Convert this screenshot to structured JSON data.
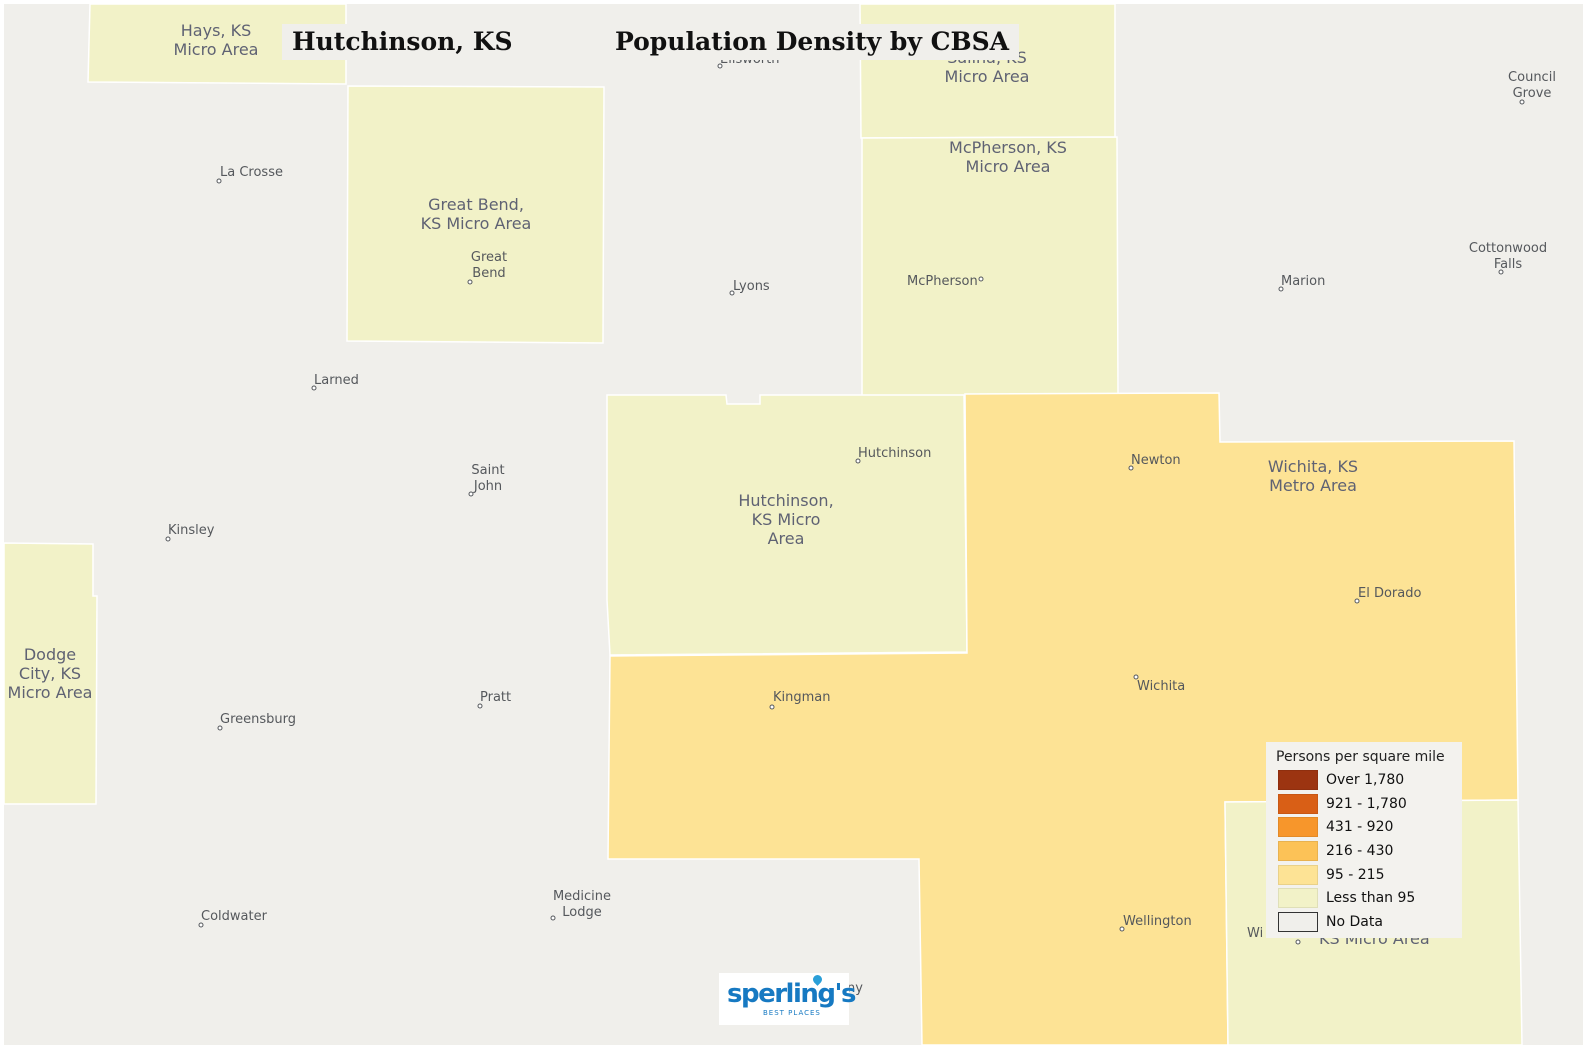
{
  "map": {
    "title_location": "Hutchinson, KS",
    "title_subject": "Population Density by CBSA",
    "colors": {
      "background": "#f0efeb",
      "less_than_95": "#f2f2c8",
      "band_95_215": "#fde395",
      "border": "#ffffff"
    },
    "areas": [
      {
        "id": "hays",
        "name": "Hays, KS Micro Area",
        "lines": [
          "Hays, KS",
          "Micro Area"
        ],
        "density_class": "Less than 95"
      },
      {
        "id": "great-bend",
        "name": "Great Bend, KS Micro Area",
        "lines": [
          "Great Bend,",
          "KS Micro Area"
        ],
        "density_class": "Less than 95"
      },
      {
        "id": "salina",
        "name": "Salina, KS Micro Area",
        "lines": [
          "Salina, KS",
          "Micro Area"
        ],
        "density_class": "Less than 95"
      },
      {
        "id": "mcpherson",
        "name": "McPherson, KS Micro Area",
        "lines": [
          "McPherson, KS",
          "Micro Area"
        ],
        "density_class": "Less than 95"
      },
      {
        "id": "hutchinson",
        "name": "Hutchinson, KS Micro Area",
        "lines": [
          "Hutchinson,",
          "KS Micro",
          "Area"
        ],
        "density_class": "Less than 95"
      },
      {
        "id": "dodge-city",
        "name": "Dodge City, KS Micro Area",
        "lines": [
          "Dodge",
          "City, KS",
          "Micro Area"
        ],
        "density_class": "Less than 95"
      },
      {
        "id": "wichita",
        "name": "Wichita, KS Metro Area",
        "lines": [
          "Wichita, KS",
          "Metro Area"
        ],
        "density_class": "95 - 215"
      },
      {
        "id": "winfield",
        "name": "KS Micro Area",
        "lines": [
          "KS Micro Area"
        ],
        "density_class": "Less than 95"
      }
    ],
    "towns": [
      {
        "id": "la-crosse",
        "name": "La Crosse",
        "lines": [
          "La Crosse"
        ]
      },
      {
        "id": "great-bend-city",
        "name": "Great Bend",
        "lines": [
          "Great",
          "Bend"
        ]
      },
      {
        "id": "lyons",
        "name": "Lyons",
        "lines": [
          "Lyons"
        ]
      },
      {
        "id": "mcpherson-city",
        "name": "McPherson",
        "lines": [
          "McPherson"
        ]
      },
      {
        "id": "marion",
        "name": "Marion",
        "lines": [
          "Marion"
        ]
      },
      {
        "id": "council-grove",
        "name": "Council Grove",
        "lines": [
          "Council",
          "Grove"
        ]
      },
      {
        "id": "cottonwood-falls",
        "name": "Cottonwood Falls",
        "lines": [
          "Cottonwood",
          "Falls"
        ]
      },
      {
        "id": "larned",
        "name": "Larned",
        "lines": [
          "Larned"
        ]
      },
      {
        "id": "saint-john",
        "name": "Saint John",
        "lines": [
          "Saint",
          "John"
        ]
      },
      {
        "id": "hutchinson-city",
        "name": "Hutchinson",
        "lines": [
          "Hutchinson"
        ]
      },
      {
        "id": "newton",
        "name": "Newton",
        "lines": [
          "Newton"
        ]
      },
      {
        "id": "kinsley",
        "name": "Kinsley",
        "lines": [
          "Kinsley"
        ]
      },
      {
        "id": "el-dorado",
        "name": "El Dorado",
        "lines": [
          "El Dorado"
        ]
      },
      {
        "id": "kingman",
        "name": "Kingman",
        "lines": [
          "Kingman"
        ]
      },
      {
        "id": "wichita-city",
        "name": "Wichita",
        "lines": [
          "Wichita"
        ]
      },
      {
        "id": "pratt",
        "name": "Pratt",
        "lines": [
          "Pratt"
        ]
      },
      {
        "id": "greensburg",
        "name": "Greensburg",
        "lines": [
          "Greensburg"
        ]
      },
      {
        "id": "medicine-lodge",
        "name": "Medicine Lodge",
        "lines": [
          "Medicine",
          "Lodge"
        ]
      },
      {
        "id": "coldwater",
        "name": "Coldwater",
        "lines": [
          "Coldwater"
        ]
      },
      {
        "id": "wellington",
        "name": "Wellington",
        "lines": [
          "Wellington"
        ]
      },
      {
        "id": "winfield-partial",
        "name": "Wi",
        "lines": [
          "Wi"
        ]
      },
      {
        "id": "anthony-partial",
        "name": "ny",
        "lines": [
          "ny"
        ]
      },
      {
        "id": "ellsworth-partial",
        "name": "Ellsworth",
        "lines": [
          "Ellsworth"
        ]
      }
    ]
  },
  "legend": {
    "title": "Persons per square mile",
    "items": [
      {
        "label": "Over 1,780",
        "color": "#9c3411"
      },
      {
        "label": "921 - 1,780",
        "color": "#d95f16"
      },
      {
        "label": "431 - 920",
        "color": "#f7962b"
      },
      {
        "label": "216 - 430",
        "color": "#fcc257"
      },
      {
        "label": "95 - 215",
        "color": "#fde395"
      },
      {
        "label": "Less than 95",
        "color": "#f2f2c8"
      },
      {
        "label": "No Data",
        "color": "#f0efeb"
      }
    ]
  },
  "logo": {
    "wordmark": "sperling's",
    "tagline": "BEST PLACES"
  }
}
